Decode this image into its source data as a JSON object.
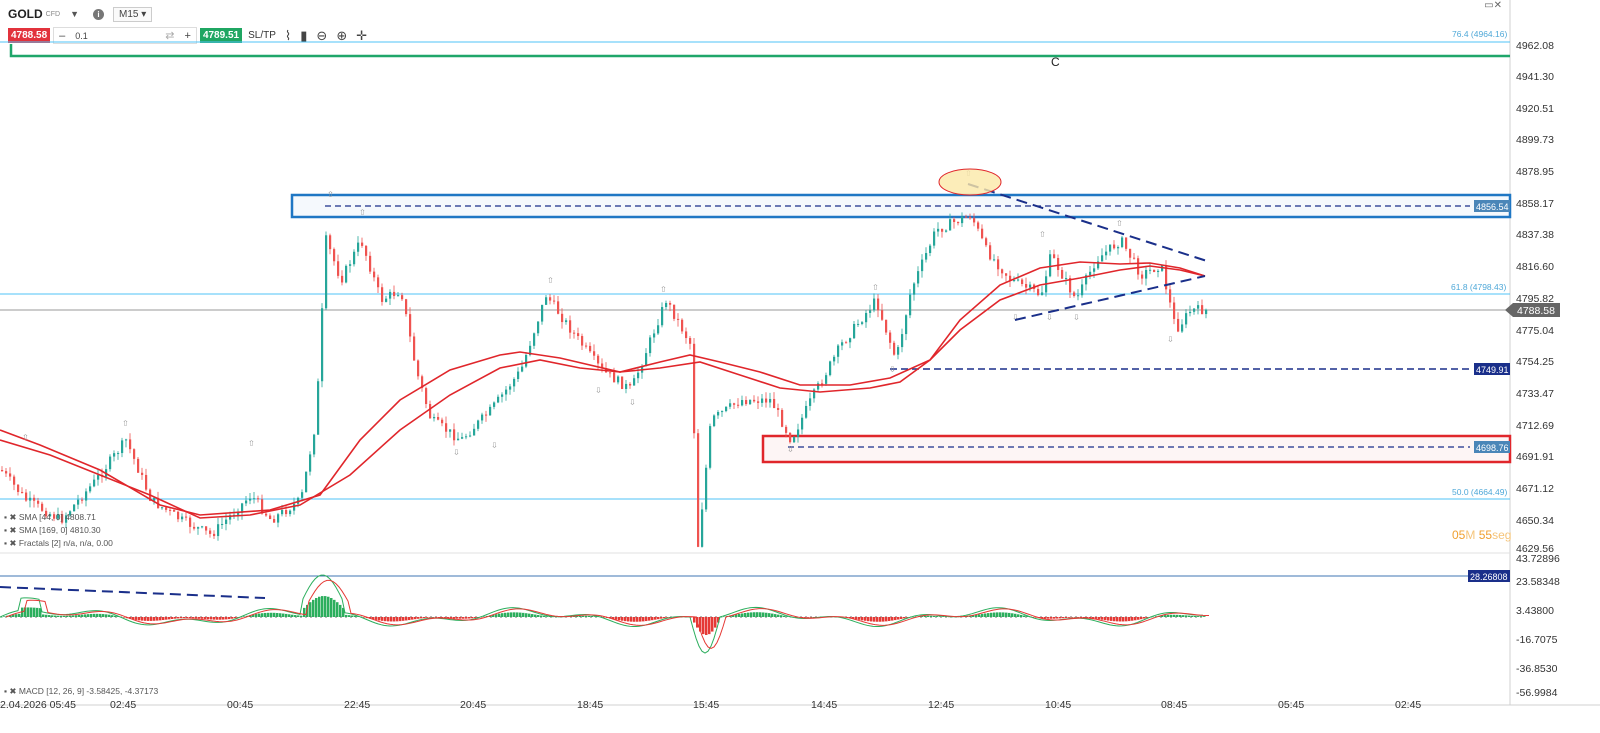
{
  "header": {
    "symbol": "GOLD",
    "symbol_tag": "CFD",
    "timeframe": "M15",
    "sell_price": "4788.58",
    "quantity": "0.1",
    "buy_price": "4789.51",
    "sltp_label": "SL/TP"
  },
  "price_axis": {
    "labels": [
      "4962.08",
      "4941.30",
      "4920.51",
      "4899.73",
      "4878.95",
      "4858.17",
      "4837.38",
      "4816.60",
      "4795.82",
      "4775.04",
      "4754.25",
      "4733.47",
      "4712.69",
      "4691.91",
      "4671.12",
      "4650.34",
      "4629.56"
    ],
    "current_price": "4788.58",
    "resistance_badge": "4856.54",
    "level_badge": "4749.91",
    "support_badge": "4698.76"
  },
  "fib_labels": {
    "fib_764": "76.4 (4964.16)",
    "fib_618": "61.8 (4798.43)",
    "fib_500": "50.0 (4664.49)"
  },
  "annotation_c": "C",
  "indicators": {
    "sma1": "SMA [44, 0] 4808.71",
    "sma2": "SMA [169, 0] 4810.30",
    "fractals": "Fractals [2] n/a, n/a, 0.00",
    "macd": "MACD [12, 26, 9] -3.58425, -4.37173"
  },
  "macd_axis": {
    "labels": [
      "43.72896",
      "23.58348",
      "3.43800",
      "-16.7075",
      "-36.8530",
      "-56.9984"
    ],
    "badge": "28.26808"
  },
  "time_axis": {
    "labels": [
      "2.04.2026 05:45",
      "02:45",
      "00:45",
      "22:45",
      "20:45",
      "18:45",
      "15:45",
      "14:45",
      "12:45",
      "10:45",
      "08:45",
      "05:45",
      "02:45"
    ]
  },
  "countdown": {
    "minutes": "05",
    "m_unit": "M",
    "seconds": "55",
    "s_unit": "seg"
  },
  "colors": {
    "bull": "#26a69a",
    "bear": "#ef5350",
    "sma": "#e0262b",
    "resistance_box": "#1f77c4",
    "support_box": "#e0262b",
    "fib": "#4fc3f7",
    "trend": "#1a2f8a",
    "macd_pos": "#2cae5d",
    "macd_neg": "#e53935"
  }
}
